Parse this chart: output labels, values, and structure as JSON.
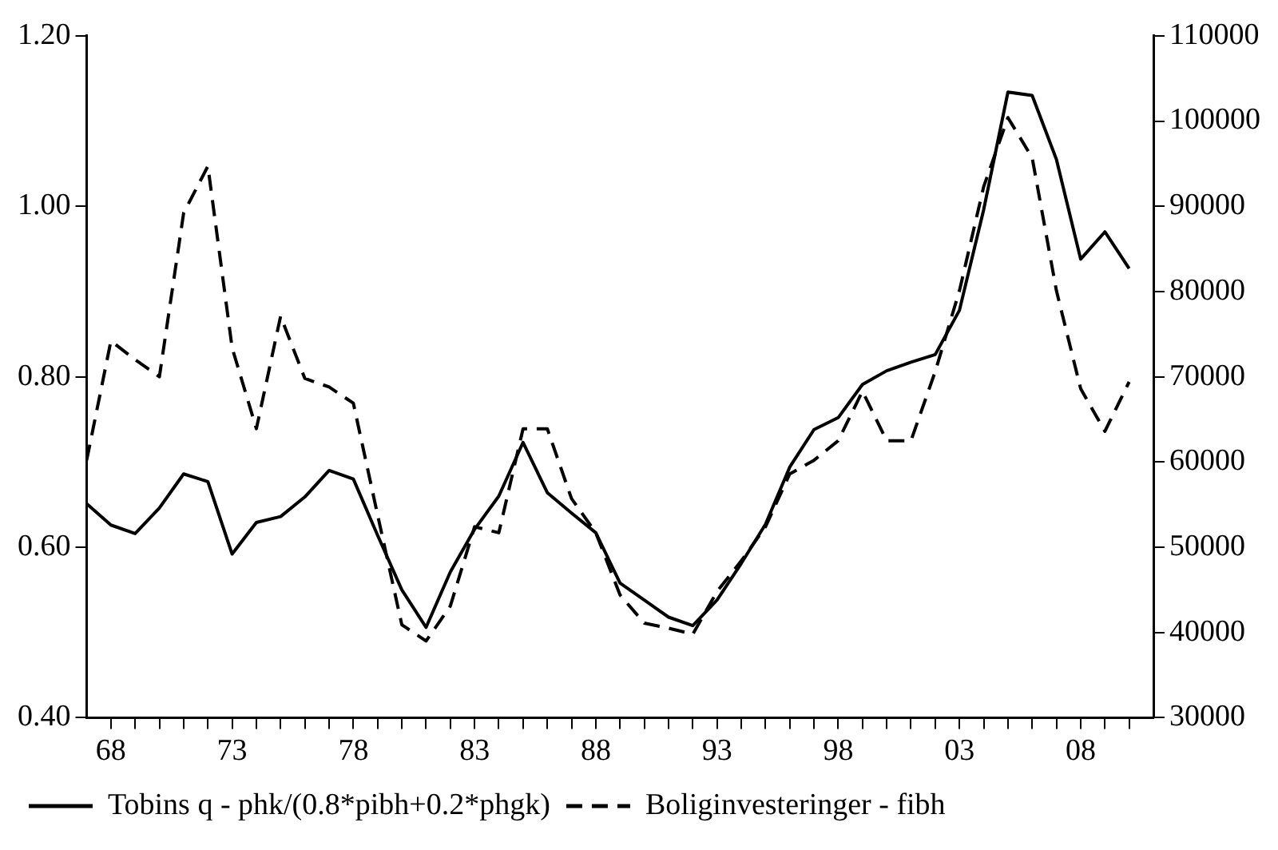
{
  "chart_data": {
    "type": "line",
    "x": [
      1967,
      1968,
      1969,
      1970,
      1971,
      1972,
      1973,
      1974,
      1975,
      1976,
      1977,
      1978,
      1979,
      1980,
      1981,
      1982,
      1983,
      1984,
      1985,
      1986,
      1987,
      1988,
      1989,
      1990,
      1991,
      1992,
      1993,
      1994,
      1995,
      1996,
      1997,
      1998,
      1999,
      2000,
      2001,
      2002,
      2003,
      2004,
      2005,
      2006,
      2007,
      2008,
      2009,
      2010
    ],
    "series": [
      {
        "name": "Tobins q - phk/(0.8*pibh+0.2*phgk)",
        "color": "#000000",
        "line_style": "solid",
        "values": [
          0.651,
          0.626,
          0.616,
          0.646,
          0.686,
          0.677,
          0.592,
          0.629,
          0.636,
          0.659,
          0.69,
          0.68,
          0.614,
          0.55,
          0.506,
          0.571,
          0.621,
          0.66,
          0.723,
          0.664,
          0.64,
          0.617,
          0.558,
          0.538,
          0.518,
          0.508,
          0.538,
          0.581,
          0.627,
          0.694,
          0.738,
          0.752,
          0.791,
          0.807,
          0.817,
          0.826,
          0.878,
          0.996,
          1.134,
          1.13,
          1.055,
          0.938,
          0.97,
          0.927
        ]
      },
      {
        "name": "Boliginvesteringer - fibh",
        "color": "#000000",
        "line_style": "dashed",
        "axis": "y2",
        "values": [
          60200,
          74200,
          72000,
          70000,
          89200,
          94700,
          73400,
          63900,
          77100,
          69800,
          68800,
          66900,
          53800,
          40900,
          39000,
          43100,
          52400,
          51700,
          63900,
          63900,
          55700,
          51700,
          44400,
          41100,
          40500,
          39800,
          44800,
          48400,
          52400,
          58600,
          60200,
          62500,
          68300,
          62500,
          62500,
          70600,
          80100,
          92300,
          100400,
          95700,
          80100,
          68600,
          63600,
          69400
        ]
      }
    ],
    "xlim": [
      1967,
      2011
    ],
    "xticks": [
      {
        "value": 1968,
        "label": "68"
      },
      {
        "value": 1969,
        "label": null
      },
      {
        "value": 1970,
        "label": null
      },
      {
        "value": 1971,
        "label": null
      },
      {
        "value": 1972,
        "label": null
      },
      {
        "value": 1973,
        "label": "73"
      },
      {
        "value": 1974,
        "label": null
      },
      {
        "value": 1975,
        "label": null
      },
      {
        "value": 1976,
        "label": null
      },
      {
        "value": 1977,
        "label": null
      },
      {
        "value": 1978,
        "label": "78"
      },
      {
        "value": 1979,
        "label": null
      },
      {
        "value": 1980,
        "label": null
      },
      {
        "value": 1981,
        "label": null
      },
      {
        "value": 1982,
        "label": null
      },
      {
        "value": 1983,
        "label": "83"
      },
      {
        "value": 1984,
        "label": null
      },
      {
        "value": 1985,
        "label": null
      },
      {
        "value": 1986,
        "label": null
      },
      {
        "value": 1987,
        "label": null
      },
      {
        "value": 1988,
        "label": "88"
      },
      {
        "value": 1989,
        "label": null
      },
      {
        "value": 1990,
        "label": null
      },
      {
        "value": 1991,
        "label": null
      },
      {
        "value": 1992,
        "label": null
      },
      {
        "value": 1993,
        "label": "93"
      },
      {
        "value": 1994,
        "label": null
      },
      {
        "value": 1995,
        "label": null
      },
      {
        "value": 1996,
        "label": null
      },
      {
        "value": 1997,
        "label": null
      },
      {
        "value": 1998,
        "label": "98"
      },
      {
        "value": 1999,
        "label": null
      },
      {
        "value": 2000,
        "label": null
      },
      {
        "value": 2001,
        "label": null
      },
      {
        "value": 2002,
        "label": null
      },
      {
        "value": 2003,
        "label": "03"
      },
      {
        "value": 2004,
        "label": null
      },
      {
        "value": 2005,
        "label": null
      },
      {
        "value": 2006,
        "label": null
      },
      {
        "value": 2007,
        "label": null
      },
      {
        "value": 2008,
        "label": "08"
      },
      {
        "value": 2009,
        "label": null
      },
      {
        "value": 2010,
        "label": null
      }
    ],
    "ylim": [
      0.4,
      1.2
    ],
    "yticks": [
      {
        "value": 0.4,
        "label": "0.40"
      },
      {
        "value": 0.6,
        "label": "0.60"
      },
      {
        "value": 0.8,
        "label": "0.80"
      },
      {
        "value": 1.0,
        "label": "1.00"
      },
      {
        "value": 1.2,
        "label": "1.20"
      }
    ],
    "y2lim": [
      30000,
      110000
    ],
    "y2ticks": [
      30000,
      40000,
      50000,
      60000,
      70000,
      80000,
      90000,
      100000,
      110000
    ],
    "legend": "bottom",
    "marker": "none"
  }
}
